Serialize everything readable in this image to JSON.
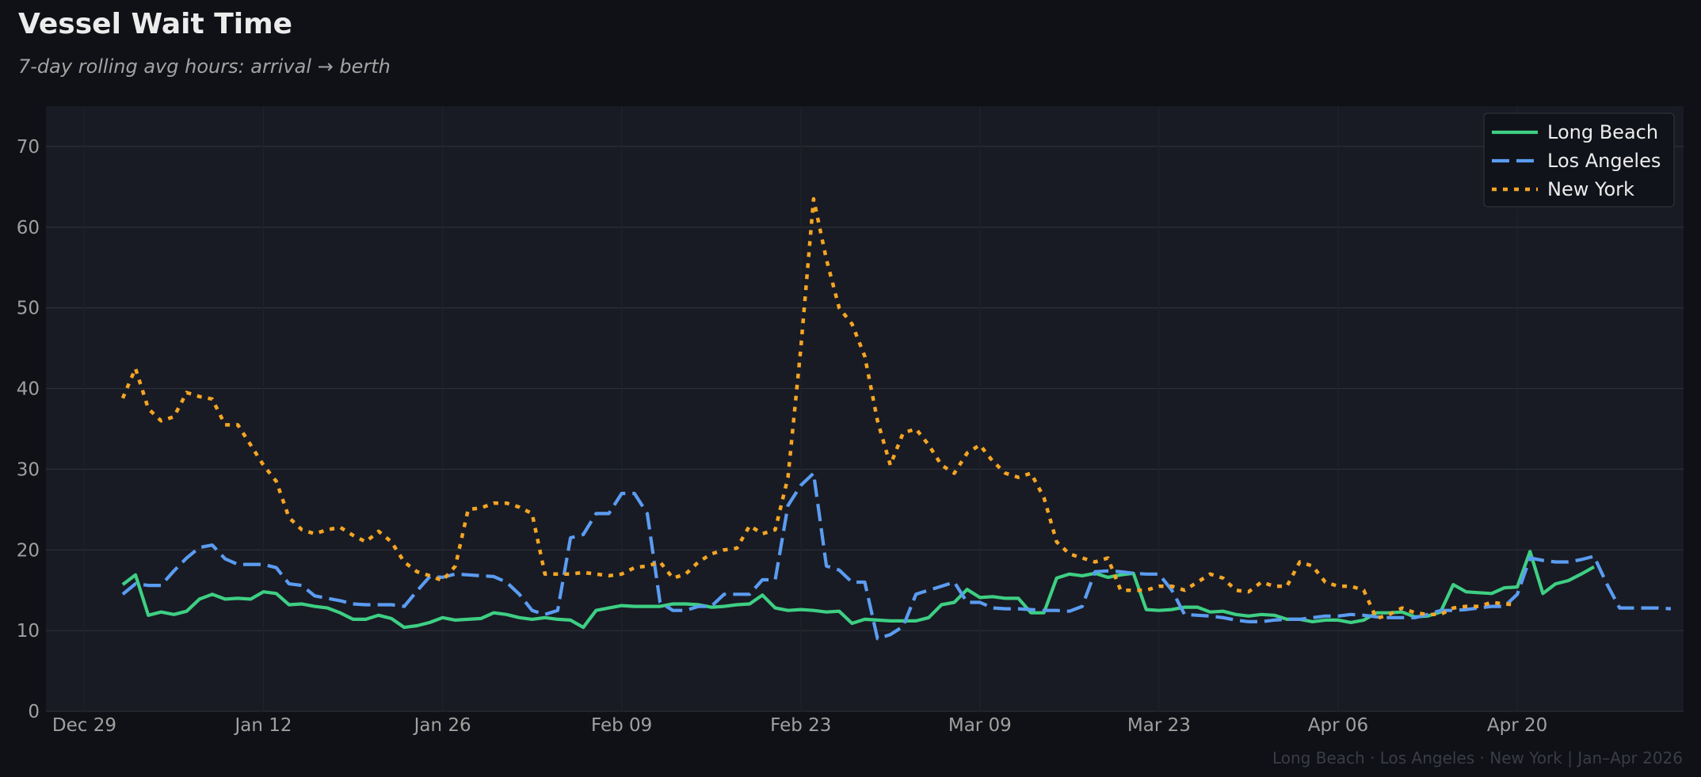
{
  "header": {
    "title": "Vessel Wait Time",
    "subtitle": "7-day rolling avg hours: arrival → berth"
  },
  "footer": {
    "note": "Long Beach  ·  Los Angeles  ·  New York  |  Jan–Apr 2026"
  },
  "colors": {
    "long_beach": "#3ecf84",
    "los_angeles": "#5b9cf2",
    "new_york": "#f5a524",
    "plot_bg": "#181b23",
    "page_bg": "#0f1116",
    "grid": "#2b2e36"
  },
  "chart_data": {
    "type": "line",
    "title": "Vessel Wait Time",
    "subtitle": "7-day rolling avg hours: arrival → berth",
    "xlabel": "",
    "ylabel": "",
    "x_start_date": "2026-01-01",
    "x_step_days": 1,
    "xlim_days": [
      -6,
      122
    ],
    "x_ticks": [
      {
        "day": -3,
        "label": "Dec 29"
      },
      {
        "day": 11,
        "label": "Jan 12"
      },
      {
        "day": 25,
        "label": "Jan 26"
      },
      {
        "day": 39,
        "label": "Feb 09"
      },
      {
        "day": 53,
        "label": "Feb 23"
      },
      {
        "day": 67,
        "label": "Mar 09"
      },
      {
        "day": 81,
        "label": "Mar 23"
      },
      {
        "day": 95,
        "label": "Apr 06"
      },
      {
        "day": 109,
        "label": "Apr 20"
      }
    ],
    "ylim": [
      0,
      75
    ],
    "y_ticks": [
      0,
      10,
      20,
      30,
      40,
      50,
      60,
      70
    ],
    "grid": true,
    "legend_position": "top-right",
    "series": [
      {
        "name": "Long Beach",
        "style": "solid",
        "color": "#3ecf84",
        "values": [
          15.7,
          16.9,
          11.9,
          12.3,
          12.0,
          12.4,
          13.9,
          14.5,
          13.9,
          14.0,
          13.9,
          14.8,
          14.6,
          13.2,
          13.3,
          13.0,
          12.8,
          12.2,
          11.4,
          11.4,
          11.9,
          11.5,
          10.4,
          10.6,
          11.0,
          11.6,
          11.3,
          11.4,
          11.5,
          12.2,
          12.0,
          11.6,
          11.4,
          11.6,
          11.4,
          11.3,
          10.4,
          12.5,
          12.8,
          13.1,
          13.0,
          13.0,
          13.0,
          13.3,
          13.3,
          13.2,
          12.9,
          13.0,
          13.2,
          13.3,
          14.4,
          12.8,
          12.5,
          12.6,
          12.5,
          12.3,
          12.4,
          10.9,
          11.4,
          11.3,
          11.2,
          11.2,
          11.2,
          11.6,
          13.2,
          13.5,
          15.1,
          14.1,
          14.2,
          14.0,
          14.0,
          12.2,
          12.2,
          16.5,
          17.0,
          16.8,
          17.1,
          16.6,
          16.9,
          17.1,
          12.6,
          12.5,
          12.6,
          12.9,
          12.9,
          12.3,
          12.4,
          12.0,
          11.8,
          12.0,
          11.9,
          11.4,
          11.4,
          11.1,
          11.3,
          11.3,
          11.0,
          11.3,
          12.2,
          12.2,
          12.3,
          11.7,
          11.8,
          12.3,
          15.7,
          14.8,
          14.7,
          14.6,
          15.3,
          15.4,
          19.8,
          14.6,
          15.8,
          16.2,
          17.0,
          17.9
        ]
      },
      {
        "name": "Los Angeles",
        "style": "dashed",
        "color": "#5b9cf2",
        "values": [
          14.5,
          15.8,
          15.6,
          15.6,
          17.4,
          19.0,
          20.3,
          20.6,
          18.9,
          18.2,
          18.2,
          18.2,
          17.8,
          15.8,
          15.6,
          14.3,
          14.0,
          13.7,
          13.3,
          13.2,
          13.2,
          13.2,
          13.0,
          14.9,
          16.7,
          16.6,
          17.0,
          16.9,
          16.8,
          16.7,
          16.0,
          14.5,
          12.5,
          12.0,
          12.5,
          21.5,
          21.9,
          24.5,
          24.5,
          27.0,
          27.0,
          24.5,
          13.5,
          12.5,
          12.5,
          13.0,
          13.0,
          14.5,
          14.5,
          14.5,
          16.3,
          16.3,
          25.5,
          28.0,
          29.5,
          18.0,
          17.5,
          16.0,
          16.0,
          9.0,
          9.5,
          10.5,
          14.5,
          15.0,
          15.5,
          16.0,
          13.5,
          13.5,
          12.8,
          12.7,
          12.7,
          12.6,
          12.5,
          12.5,
          12.4,
          13.0,
          17.3,
          17.4,
          17.3,
          17.1,
          17.0,
          17.0,
          15.0,
          12.0,
          11.9,
          11.8,
          11.6,
          11.3,
          11.1,
          11.1,
          11.3,
          11.4,
          11.4,
          11.6,
          11.8,
          11.8,
          12.0,
          11.9,
          11.7,
          11.6,
          11.6,
          11.6,
          12.0,
          12.5,
          12.5,
          12.6,
          12.8,
          13.0,
          13.0,
          14.5,
          19.0,
          18.7,
          18.5,
          18.5,
          18.8,
          19.2,
          15.8,
          12.8,
          12.8,
          12.8,
          12.8,
          12.7
        ]
      },
      {
        "name": "New York",
        "style": "dotted",
        "color": "#f5a524",
        "values": [
          38.8,
          42.5,
          37.5,
          36.0,
          36.5,
          39.5,
          39.0,
          38.7,
          35.5,
          35.5,
          33.0,
          30.5,
          28.5,
          24.0,
          22.5,
          22.0,
          22.5,
          22.8,
          21.8,
          21.0,
          22.3,
          21.0,
          18.5,
          17.3,
          16.8,
          16.2,
          18.0,
          25.0,
          25.2,
          25.8,
          25.8,
          25.3,
          24.5,
          17.0,
          17.0,
          17.0,
          17.2,
          17.0,
          16.8,
          17.0,
          17.8,
          18.0,
          18.5,
          16.5,
          17.0,
          18.5,
          19.5,
          20.0,
          20.2,
          23.0,
          22.0,
          22.5,
          29.0,
          45.0,
          63.5,
          56.0,
          50.0,
          48.0,
          44.0,
          36.0,
          30.5,
          34.5,
          35.0,
          33.0,
          30.5,
          29.5,
          32.0,
          33.0,
          31.0,
          29.5,
          29.0,
          29.5,
          26.5,
          21.0,
          19.5,
          19.0,
          18.5,
          19.0,
          15.0,
          15.0,
          15.0,
          15.5,
          15.5,
          15.0,
          16.0,
          17.0,
          16.5,
          15.0,
          14.8,
          16.0,
          15.5,
          15.5,
          18.5,
          18.0,
          16.0,
          15.5,
          15.5,
          15.0,
          11.5,
          12.0,
          12.8,
          12.2,
          12.0,
          12.0,
          12.8,
          13.0,
          13.0,
          13.5,
          13.3,
          13.2
        ]
      }
    ]
  }
}
